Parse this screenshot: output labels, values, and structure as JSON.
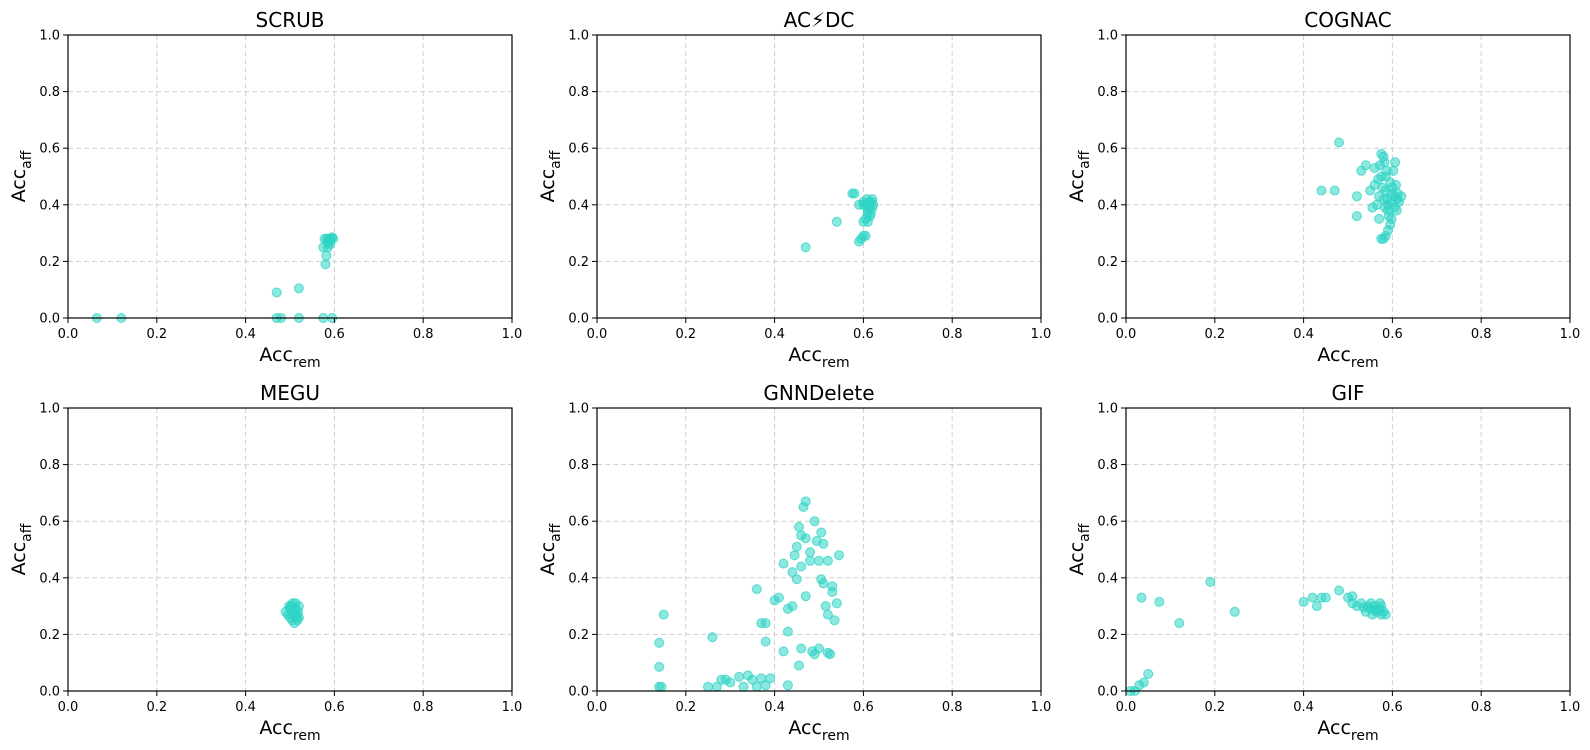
{
  "chart_data": {
    "type": "scatter",
    "marker_color": "#2dd4c4",
    "x_axis": {
      "base": "Acc",
      "sub": "rem",
      "range": [
        0,
        1
      ],
      "ticks": [
        "0.0",
        "0.2",
        "0.4",
        "0.6",
        "0.8",
        "1.0"
      ]
    },
    "y_axis": {
      "base": "Acc",
      "sub": "aff",
      "range": [
        0,
        1
      ],
      "ticks": [
        "0.0",
        "0.2",
        "0.4",
        "0.6",
        "0.8",
        "1.0"
      ]
    },
    "grid": true,
    "panels": [
      {
        "title": "SCRUB",
        "points": [
          [
            0.065,
            0.0
          ],
          [
            0.12,
            0.0
          ],
          [
            0.47,
            0.09
          ],
          [
            0.47,
            0.0
          ],
          [
            0.48,
            0.0
          ],
          [
            0.52,
            0.105
          ],
          [
            0.52,
            0.0
          ],
          [
            0.575,
            0.0
          ],
          [
            0.595,
            0.0
          ],
          [
            0.575,
            0.25
          ],
          [
            0.58,
            0.19
          ],
          [
            0.582,
            0.22
          ],
          [
            0.585,
            0.25
          ],
          [
            0.585,
            0.27
          ],
          [
            0.588,
            0.28
          ],
          [
            0.59,
            0.26
          ],
          [
            0.59,
            0.275
          ],
          [
            0.592,
            0.28
          ],
          [
            0.595,
            0.285
          ],
          [
            0.583,
            0.28
          ],
          [
            0.578,
            0.28
          ],
          [
            0.597,
            0.28
          ],
          [
            0.586,
            0.265
          ]
        ]
      },
      {
        "title": "AC⚡DC",
        "points": [
          [
            0.47,
            0.25
          ],
          [
            0.54,
            0.34
          ],
          [
            0.575,
            0.44
          ],
          [
            0.58,
            0.44
          ],
          [
            0.59,
            0.4
          ],
          [
            0.6,
            0.4
          ],
          [
            0.59,
            0.27
          ],
          [
            0.595,
            0.28
          ],
          [
            0.6,
            0.29
          ],
          [
            0.605,
            0.29
          ],
          [
            0.6,
            0.34
          ],
          [
            0.605,
            0.35
          ],
          [
            0.61,
            0.37
          ],
          [
            0.61,
            0.38
          ],
          [
            0.612,
            0.39
          ],
          [
            0.615,
            0.4
          ],
          [
            0.618,
            0.41
          ],
          [
            0.62,
            0.42
          ],
          [
            0.608,
            0.42
          ],
          [
            0.615,
            0.36
          ],
          [
            0.61,
            0.34
          ],
          [
            0.62,
            0.39
          ],
          [
            0.605,
            0.4
          ],
          [
            0.613,
            0.41
          ],
          [
            0.617,
            0.37
          ],
          [
            0.622,
            0.4
          ],
          [
            0.6,
            0.41
          ]
        ]
      },
      {
        "title": "COGNAC",
        "points": [
          [
            0.48,
            0.62
          ],
          [
            0.44,
            0.45
          ],
          [
            0.47,
            0.45
          ],
          [
            0.52,
            0.43
          ],
          [
            0.52,
            0.36
          ],
          [
            0.53,
            0.52
          ],
          [
            0.54,
            0.54
          ],
          [
            0.55,
            0.45
          ],
          [
            0.555,
            0.39
          ],
          [
            0.56,
            0.53
          ],
          [
            0.56,
            0.47
          ],
          [
            0.565,
            0.4
          ],
          [
            0.57,
            0.35
          ],
          [
            0.575,
            0.28
          ],
          [
            0.58,
            0.28
          ],
          [
            0.585,
            0.29
          ],
          [
            0.575,
            0.58
          ],
          [
            0.58,
            0.57
          ],
          [
            0.582,
            0.55
          ],
          [
            0.585,
            0.5
          ],
          [
            0.585,
            0.45
          ],
          [
            0.588,
            0.42
          ],
          [
            0.59,
            0.4
          ],
          [
            0.59,
            0.38
          ],
          [
            0.592,
            0.36
          ],
          [
            0.595,
            0.33
          ],
          [
            0.595,
            0.48
          ],
          [
            0.598,
            0.44
          ],
          [
            0.6,
            0.41
          ],
          [
            0.6,
            0.46
          ],
          [
            0.602,
            0.52
          ],
          [
            0.605,
            0.43
          ],
          [
            0.605,
            0.39
          ],
          [
            0.608,
            0.47
          ],
          [
            0.61,
            0.42
          ],
          [
            0.612,
            0.44
          ],
          [
            0.615,
            0.41
          ],
          [
            0.62,
            0.43
          ],
          [
            0.575,
            0.5
          ],
          [
            0.578,
            0.46
          ],
          [
            0.58,
            0.42
          ],
          [
            0.583,
            0.39
          ],
          [
            0.57,
            0.43
          ],
          [
            0.568,
            0.49
          ],
          [
            0.572,
            0.54
          ],
          [
            0.59,
            0.31
          ],
          [
            0.598,
            0.35
          ],
          [
            0.606,
            0.55
          ],
          [
            0.61,
            0.38
          ],
          [
            0.587,
            0.52
          ]
        ]
      },
      {
        "title": "MEGU",
        "points": [
          [
            0.49,
            0.28
          ],
          [
            0.495,
            0.27
          ],
          [
            0.5,
            0.29
          ],
          [
            0.5,
            0.26
          ],
          [
            0.502,
            0.3
          ],
          [
            0.505,
            0.28
          ],
          [
            0.505,
            0.25
          ],
          [
            0.508,
            0.27
          ],
          [
            0.51,
            0.29
          ],
          [
            0.51,
            0.24
          ],
          [
            0.512,
            0.31
          ],
          [
            0.515,
            0.27
          ],
          [
            0.515,
            0.26
          ],
          [
            0.518,
            0.28
          ],
          [
            0.52,
            0.3
          ],
          [
            0.52,
            0.26
          ],
          [
            0.498,
            0.3
          ],
          [
            0.513,
            0.29
          ],
          [
            0.506,
            0.31
          ],
          [
            0.517,
            0.25
          ]
        ]
      },
      {
        "title": "GNNDelete",
        "points": [
          [
            0.14,
            0.17
          ],
          [
            0.15,
            0.27
          ],
          [
            0.14,
            0.085
          ],
          [
            0.14,
            0.015
          ],
          [
            0.145,
            0.015
          ],
          [
            0.26,
            0.19
          ],
          [
            0.25,
            0.015
          ],
          [
            0.27,
            0.015
          ],
          [
            0.28,
            0.04
          ],
          [
            0.29,
            0.04
          ],
          [
            0.3,
            0.03
          ],
          [
            0.32,
            0.05
          ],
          [
            0.33,
            0.015
          ],
          [
            0.34,
            0.055
          ],
          [
            0.35,
            0.04
          ],
          [
            0.36,
            0.015
          ],
          [
            0.37,
            0.045
          ],
          [
            0.38,
            0.02
          ],
          [
            0.39,
            0.045
          ],
          [
            0.36,
            0.36
          ],
          [
            0.37,
            0.24
          ],
          [
            0.38,
            0.24
          ],
          [
            0.38,
            0.175
          ],
          [
            0.4,
            0.32
          ],
          [
            0.41,
            0.33
          ],
          [
            0.42,
            0.45
          ],
          [
            0.42,
            0.14
          ],
          [
            0.43,
            0.29
          ],
          [
            0.43,
            0.02
          ],
          [
            0.44,
            0.3
          ],
          [
            0.44,
            0.42
          ],
          [
            0.445,
            0.48
          ],
          [
            0.45,
            0.51
          ],
          [
            0.45,
            0.395
          ],
          [
            0.455,
            0.58
          ],
          [
            0.46,
            0.55
          ],
          [
            0.46,
            0.44
          ],
          [
            0.46,
            0.15
          ],
          [
            0.465,
            0.65
          ],
          [
            0.47,
            0.67
          ],
          [
            0.47,
            0.54
          ],
          [
            0.47,
            0.335
          ],
          [
            0.48,
            0.49
          ],
          [
            0.48,
            0.46
          ],
          [
            0.485,
            0.14
          ],
          [
            0.49,
            0.6
          ],
          [
            0.49,
            0.13
          ],
          [
            0.495,
            0.53
          ],
          [
            0.5,
            0.46
          ],
          [
            0.5,
            0.15
          ],
          [
            0.505,
            0.56
          ],
          [
            0.505,
            0.395
          ],
          [
            0.51,
            0.52
          ],
          [
            0.51,
            0.38
          ],
          [
            0.515,
            0.3
          ],
          [
            0.52,
            0.46
          ],
          [
            0.52,
            0.27
          ],
          [
            0.52,
            0.135
          ],
          [
            0.525,
            0.13
          ],
          [
            0.53,
            0.35
          ],
          [
            0.53,
            0.37
          ],
          [
            0.535,
            0.25
          ],
          [
            0.54,
            0.31
          ],
          [
            0.545,
            0.48
          ],
          [
            0.455,
            0.09
          ],
          [
            0.43,
            0.21
          ]
        ]
      },
      {
        "title": "GIF",
        "points": [
          [
            0.01,
            0.0
          ],
          [
            0.02,
            0.0
          ],
          [
            0.03,
            0.02
          ],
          [
            0.04,
            0.03
          ],
          [
            0.05,
            0.06
          ],
          [
            0.035,
            0.33
          ],
          [
            0.075,
            0.315
          ],
          [
            0.12,
            0.24
          ],
          [
            0.19,
            0.385
          ],
          [
            0.245,
            0.28
          ],
          [
            0.4,
            0.315
          ],
          [
            0.42,
            0.33
          ],
          [
            0.43,
            0.3
          ],
          [
            0.44,
            0.33
          ],
          [
            0.45,
            0.33
          ],
          [
            0.48,
            0.355
          ],
          [
            0.5,
            0.33
          ],
          [
            0.51,
            0.31
          ],
          [
            0.52,
            0.3
          ],
          [
            0.53,
            0.31
          ],
          [
            0.54,
            0.28
          ],
          [
            0.545,
            0.3
          ],
          [
            0.55,
            0.29
          ],
          [
            0.555,
            0.27
          ],
          [
            0.56,
            0.3
          ],
          [
            0.565,
            0.28
          ],
          [
            0.57,
            0.29
          ],
          [
            0.575,
            0.3
          ],
          [
            0.575,
            0.27
          ],
          [
            0.58,
            0.28
          ],
          [
            0.585,
            0.27
          ],
          [
            0.572,
            0.31
          ],
          [
            0.552,
            0.31
          ],
          [
            0.562,
            0.285
          ],
          [
            0.535,
            0.295
          ],
          [
            0.51,
            0.335
          ]
        ]
      }
    ]
  }
}
